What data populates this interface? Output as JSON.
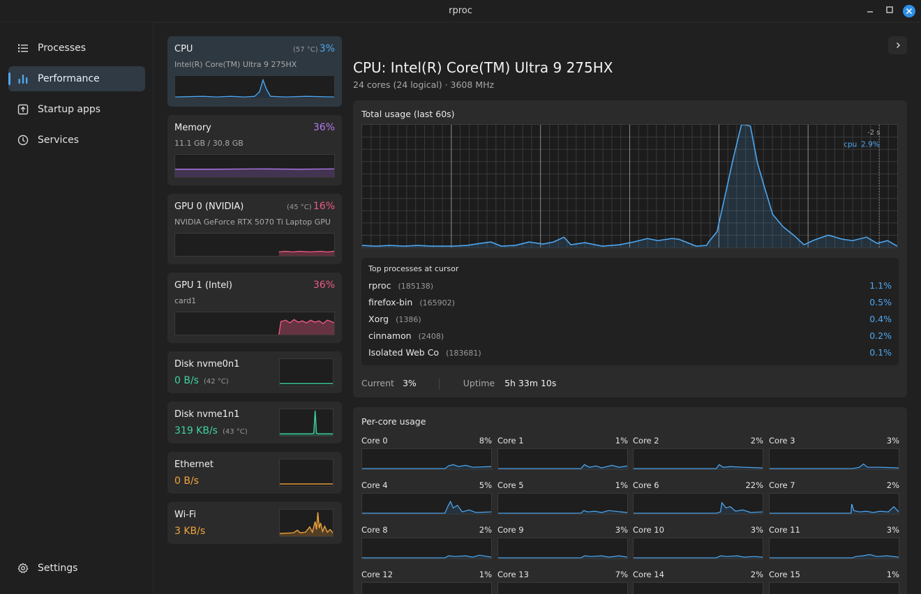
{
  "window": {
    "title": "rproc"
  },
  "sidebar": {
    "items": [
      {
        "label": "Processes",
        "icon": "list-icon",
        "active": false
      },
      {
        "label": "Performance",
        "icon": "bar-chart-icon",
        "active": true
      },
      {
        "label": "Startup apps",
        "icon": "startup-icon",
        "active": false
      },
      {
        "label": "Services",
        "icon": "power-icon",
        "active": false
      }
    ],
    "settings_label": "Settings"
  },
  "devices": {
    "cpu": {
      "name": "CPU",
      "temp": "(57 °C)",
      "pct": "3%",
      "sub": "Intel(R) Core(TM) Ultra 9 275HX",
      "color": "#4ea8f2"
    },
    "memory": {
      "name": "Memory",
      "pct": "36%",
      "sub": "11.1 GB / 30.8 GB",
      "color": "#b57bf0"
    },
    "gpu0": {
      "name": "GPU 0 (NVIDIA)",
      "temp": "(45 °C)",
      "pct": "16%",
      "sub": "NVIDIA GeForce RTX 5070 Ti Laptop GPU",
      "color": "#ee5c86"
    },
    "gpu1": {
      "name": "GPU 1 (Intel)",
      "pct": "36%",
      "sub": "card1",
      "color": "#ee5c86"
    },
    "disk0": {
      "name": "Disk nvme0n1",
      "value": "0 B/s",
      "temp": "(42 °C)",
      "color": "#3ed2a0"
    },
    "disk1": {
      "name": "Disk nvme1n1",
      "value": "319 KB/s",
      "temp": "(43 °C)",
      "color": "#3ed2a0"
    },
    "ethernet": {
      "name": "Ethernet",
      "value": "0 B/s",
      "color": "#f2a53c"
    },
    "wifi": {
      "name": "Wi-Fi",
      "value": "3 KB/s",
      "color": "#f2a53c"
    }
  },
  "main": {
    "title": "CPU: Intel(R) Core(TM) Ultra 9 275HX",
    "subtitle": "24 cores (24 logical) · 3608 MHz",
    "usage_title": "Total usage (last 60s)",
    "cursor_time": "-2 s",
    "cursor_series": "cpu",
    "cursor_value": "2.9%",
    "top_title": "Top processes at cursor",
    "top_processes": [
      {
        "name": "rproc",
        "pid": "(185138)",
        "value": "1.1%"
      },
      {
        "name": "firefox-bin",
        "pid": "(165902)",
        "value": "0.5%"
      },
      {
        "name": "Xorg",
        "pid": "(1386)",
        "value": "0.4%"
      },
      {
        "name": "cinnamon",
        "pid": "(2408)",
        "value": "0.2%"
      },
      {
        "name": "Isolated Web Co",
        "pid": "(183681)",
        "value": "0.1%"
      }
    ],
    "current_label": "Current",
    "current_value": "3%",
    "uptime_label": "Uptime",
    "uptime_value": "5h 33m 10s",
    "percore_title": "Per-core usage",
    "cores": [
      {
        "name": "Core 0",
        "value": "8%"
      },
      {
        "name": "Core 1",
        "value": "1%"
      },
      {
        "name": "Core 2",
        "value": "2%"
      },
      {
        "name": "Core 3",
        "value": "3%"
      },
      {
        "name": "Core 4",
        "value": "5%"
      },
      {
        "name": "Core 5",
        "value": "1%"
      },
      {
        "name": "Core 6",
        "value": "22%"
      },
      {
        "name": "Core 7",
        "value": "2%"
      },
      {
        "name": "Core 8",
        "value": "2%"
      },
      {
        "name": "Core 9",
        "value": "3%"
      },
      {
        "name": "Core 10",
        "value": "3%"
      },
      {
        "name": "Core 11",
        "value": "3%"
      },
      {
        "name": "Core 12",
        "value": "1%"
      },
      {
        "name": "Core 13",
        "value": "7%"
      },
      {
        "name": "Core 14",
        "value": "2%"
      },
      {
        "name": "Core 15",
        "value": "1%"
      }
    ]
  },
  "colors": {
    "accent": "#4ea8f2",
    "memory": "#b57bf0",
    "gpu": "#ee5c86",
    "disk": "#3ed2a0",
    "net": "#f2a53c"
  }
}
